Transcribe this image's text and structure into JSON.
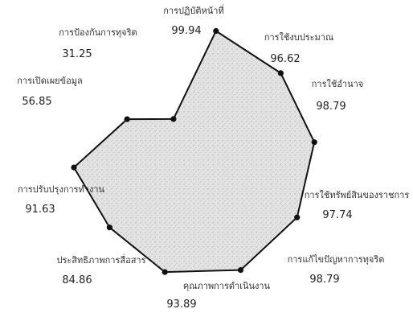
{
  "chart_data": {
    "type": "radar",
    "title": "",
    "scale_max": 100,
    "grid": false,
    "legend": "none",
    "colors": {
      "fill": "#d9d9d9",
      "stroke": "#111111",
      "point": "#111111"
    },
    "axes": [
      {
        "label": "การปฏิบัติหน้าที่",
        "value": 99.94,
        "display": "99.94"
      },
      {
        "label": "การใช้งบประมาณ",
        "value": 96.62,
        "display": "96.62"
      },
      {
        "label": "การใช้อำนาจ",
        "value": 98.79,
        "display": "98.79"
      },
      {
        "label": "การใช้ทรัพย์สินของราชการ",
        "value": 97.74,
        "display": "97.74"
      },
      {
        "label": "การแก้ไขปัญหาการทุจริต",
        "value": 98.79,
        "display": "98.79"
      },
      {
        "label": "คุณภาพการดำเนินงาน",
        "value": 93.89,
        "display": "93.89"
      },
      {
        "label": "ประสิทธิภาพการสื่อสาร",
        "value": 84.86,
        "display": "84.86"
      },
      {
        "label": "การปรับปรุงการทำงาน",
        "value": 91.63,
        "display": "91.63"
      },
      {
        "label": "การเปิดเผยข้อมูล",
        "value": 56.85,
        "display": "56.85"
      },
      {
        "label": "การป้องกันการทุจริต",
        "value": 31.25,
        "display": "31.25"
      }
    ]
  }
}
